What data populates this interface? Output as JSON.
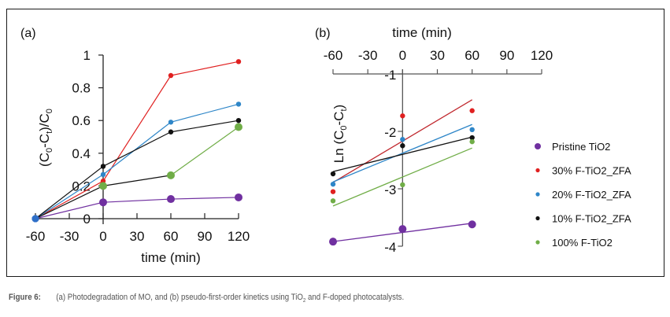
{
  "figure": {
    "caption_label": "Figure 6:",
    "caption_pre": "(a) Photodegradation of MO, and (b) pseudo-first-order kinetics using TiO",
    "caption_sub": "2",
    "caption_post": " and F-doped photocatalysts."
  },
  "chart_data": [
    {
      "panel": "(a)",
      "type": "line",
      "title": "",
      "xlabel": "time (min)",
      "ylabel": "(C0-Ct)/C0",
      "ylabel_parts": {
        "pre": "(C",
        "sub1": "0",
        "mid": "-C",
        "sub2": "t",
        "post": ")/C",
        "sub3": "0"
      },
      "xlim": [
        -60,
        120
      ],
      "ylim": [
        0,
        1
      ],
      "xticks": [
        -60,
        -30,
        0,
        30,
        60,
        90,
        120
      ],
      "xtick_labels": [
        "-60",
        "-30",
        "0",
        "30",
        "60",
        "90",
        "120"
      ],
      "yticks": [
        0,
        0.2,
        0.4,
        0.6,
        0.8,
        1
      ],
      "ytick_labels": [
        "0",
        "0.2",
        "0.4",
        "0.6",
        "0.8",
        "1"
      ],
      "grid": false,
      "x": [
        -60,
        0,
        60,
        120
      ],
      "series": [
        {
          "name": "Pristine TiO2",
          "color": "#7030a0",
          "values": [
            0,
            0.1,
            0.12,
            0.13
          ],
          "segment_colors": [
            "#7030a0",
            "#7030a0",
            "#7030a0"
          ],
          "marker": "large"
        },
        {
          "name": "30% F-TiO2_ZFA",
          "color": "#e02020",
          "values": [
            0,
            0.23,
            0.875,
            0.96
          ],
          "segment_colors": [
            "#e02020",
            "#e02020",
            "#e02020"
          ],
          "marker": "small"
        },
        {
          "name": "20% F-TiO2_ZFA",
          "color": "#2e86c8",
          "values": [
            0,
            0.27,
            0.59,
            0.7
          ],
          "segment_colors": [
            "#2e86c8",
            "#2e86c8",
            "#2e86c8"
          ],
          "marker": "small"
        },
        {
          "name": "10% F-TiO2_ZFA",
          "color": "#111111",
          "values": [
            0,
            0.32,
            0.53,
            0.6
          ],
          "segment_colors": [
            "#111111",
            "#111111",
            "#111111"
          ],
          "marker": "small"
        },
        {
          "name": "100% F-TiO2",
          "color": "#70ad47",
          "values": [
            0,
            0.2,
            0.265,
            0.56
          ],
          "segment_colors": [
            "#111111",
            "#111111",
            "#70ad47"
          ],
          "marker": "large"
        }
      ]
    },
    {
      "panel": "(b)",
      "type": "scatter",
      "title": "",
      "xlabel": "time (min)",
      "ylabel": "Ln (C0-Ct)",
      "ylabel_parts": {
        "pre": "Ln (C",
        "sub1": "0",
        "mid": "-C",
        "sub2": "t",
        "post": ")"
      },
      "xlim": [
        -60,
        120
      ],
      "ylim": [
        -4,
        -1
      ],
      "xaxis_position": "top",
      "xticks": [
        -60,
        -30,
        0,
        30,
        60,
        90,
        120
      ],
      "xtick_labels": [
        "-60",
        "-30",
        "0",
        "30",
        "60",
        "90",
        "120"
      ],
      "yticks": [
        -1,
        -2,
        -3,
        -4
      ],
      "ytick_labels": [
        "-1",
        "-2",
        "-3",
        "-4"
      ],
      "grid": false,
      "x": [
        -60,
        0,
        60
      ],
      "series": [
        {
          "name": "Pristine TiO2",
          "color": "#7030a0",
          "values": [
            -3.92,
            -3.7,
            -3.62
          ],
          "fit": [
            -3.92,
            -3.6
          ],
          "marker": "large"
        },
        {
          "name": "30% F-TiO2_ZFA",
          "color": "#e02020",
          "line_color": "#c0272d",
          "values": [
            -3.05,
            -1.73,
            -1.64
          ],
          "fit": [
            -2.89,
            -1.45
          ],
          "marker": "small"
        },
        {
          "name": "20% F-TiO2_ZFA",
          "color": "#2e86c8",
          "values": [
            -2.92,
            -2.14,
            -1.97
          ],
          "fit": [
            -2.88,
            -1.88
          ],
          "marker": "small"
        },
        {
          "name": "10% F-TiO2_ZFA",
          "color": "#111111",
          "values": [
            -2.74,
            -2.25,
            -2.11
          ],
          "fit": [
            -2.7,
            -2.1
          ],
          "marker": "small"
        },
        {
          "name": "100% F-TiO2",
          "color": "#70ad47",
          "values": [
            -3.21,
            -2.93,
            -2.18
          ],
          "fit": [
            -3.3,
            -2.29
          ],
          "marker": "small"
        }
      ],
      "legend": {
        "placement": "right",
        "entries": [
          "Pristine TiO2",
          "30% F-TiO2_ZFA",
          "20% F-TiO2_ZFA",
          "10% F-TiO2_ZFA",
          "100% F-TiO2"
        ],
        "colors": [
          "#7030a0",
          "#e02020",
          "#2e86c8",
          "#111111",
          "#70ad47"
        ]
      }
    }
  ]
}
